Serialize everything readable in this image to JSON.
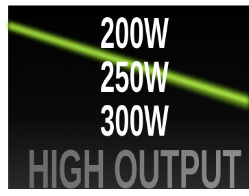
{
  "lines": [
    "200W",
    "250W",
    "300W"
  ],
  "tagline": "HIGH OUTPUT"
}
